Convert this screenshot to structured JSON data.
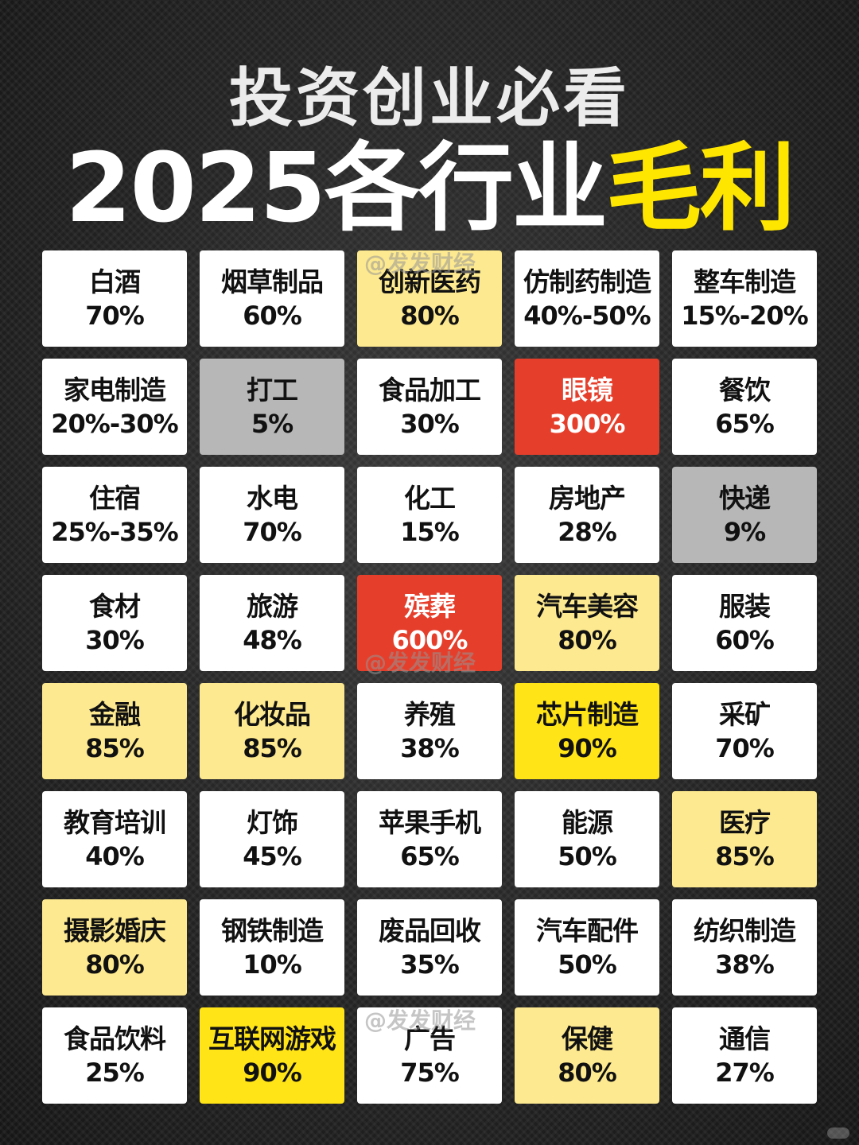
{
  "title": {
    "line1": "投资创业必看",
    "line2_main": "2025各行业",
    "line2_highlight": "毛利"
  },
  "watermark": "@发发财经",
  "styles": {
    "white": "#ffffff",
    "gray": "#b7b7b7",
    "red": "#e53f2c",
    "lightyellow": "#fde98f",
    "yellow": "#ffe418"
  },
  "cells": [
    {
      "name": "白酒",
      "value": "70%",
      "style": "white"
    },
    {
      "name": "烟草制品",
      "value": "60%",
      "style": "white"
    },
    {
      "name": "创新医药",
      "value": "80%",
      "style": "lightyellow"
    },
    {
      "name": "仿制药制造",
      "value": "40%-50%",
      "style": "white"
    },
    {
      "name": "整车制造",
      "value": "15%-20%",
      "style": "white"
    },
    {
      "name": "家电制造",
      "value": "20%-30%",
      "style": "white"
    },
    {
      "name": "打工",
      "value": "5%",
      "style": "gray"
    },
    {
      "name": "食品加工",
      "value": "30%",
      "style": "white"
    },
    {
      "name": "眼镜",
      "value": "300%",
      "style": "red"
    },
    {
      "name": "餐饮",
      "value": "65%",
      "style": "white"
    },
    {
      "name": "住宿",
      "value": "25%-35%",
      "style": "white"
    },
    {
      "name": "水电",
      "value": "70%",
      "style": "white"
    },
    {
      "name": "化工",
      "value": "15%",
      "style": "white"
    },
    {
      "name": "房地产",
      "value": "28%",
      "style": "white"
    },
    {
      "name": "快递",
      "value": "9%",
      "style": "gray"
    },
    {
      "name": "食材",
      "value": "30%",
      "style": "white"
    },
    {
      "name": "旅游",
      "value": "48%",
      "style": "white"
    },
    {
      "name": "殡葬",
      "value": "600%",
      "style": "red"
    },
    {
      "name": "汽车美容",
      "value": "80%",
      "style": "lightyellow"
    },
    {
      "name": "服装",
      "value": "60%",
      "style": "white"
    },
    {
      "name": "金融",
      "value": "85%",
      "style": "lightyellow"
    },
    {
      "name": "化妆品",
      "value": "85%",
      "style": "lightyellow"
    },
    {
      "name": "养殖",
      "value": "38%",
      "style": "white"
    },
    {
      "name": "芯片制造",
      "value": "90%",
      "style": "yellow"
    },
    {
      "name": "采矿",
      "value": "70%",
      "style": "white"
    },
    {
      "name": "教育培训",
      "value": "40%",
      "style": "white"
    },
    {
      "name": "灯饰",
      "value": "45%",
      "style": "white"
    },
    {
      "name": "苹果手机",
      "value": "65%",
      "style": "white"
    },
    {
      "name": "能源",
      "value": "50%",
      "style": "white"
    },
    {
      "name": "医疗",
      "value": "85%",
      "style": "lightyellow"
    },
    {
      "name": "摄影婚庆",
      "value": "80%",
      "style": "lightyellow"
    },
    {
      "name": "钢铁制造",
      "value": "10%",
      "style": "white"
    },
    {
      "name": "废品回收",
      "value": "35%",
      "style": "white"
    },
    {
      "name": "汽车配件",
      "value": "50%",
      "style": "white"
    },
    {
      "name": "纺织制造",
      "value": "38%",
      "style": "white"
    },
    {
      "name": "食品饮料",
      "value": "25%",
      "style": "white"
    },
    {
      "name": "互联网游戏",
      "value": "90%",
      "style": "yellow"
    },
    {
      "name": "广告",
      "value": "75%",
      "style": "white"
    },
    {
      "name": "保健",
      "value": "80%",
      "style": "lightyellow"
    },
    {
      "name": "通信",
      "value": "27%",
      "style": "white"
    }
  ]
}
